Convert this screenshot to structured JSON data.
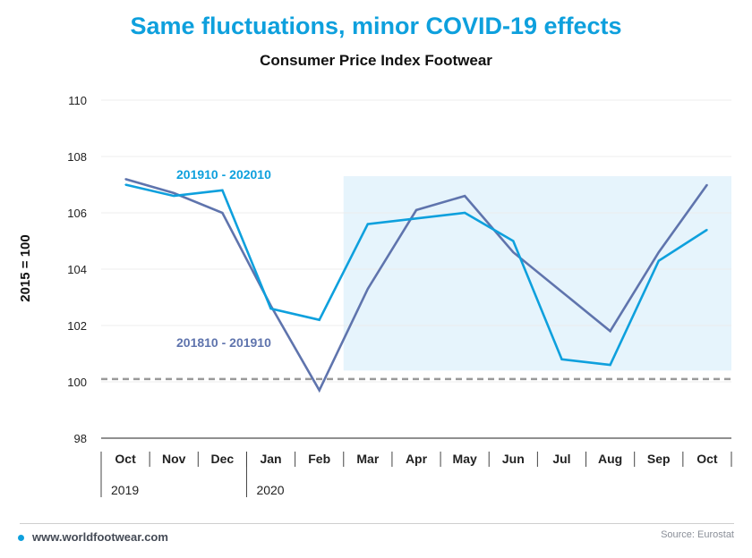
{
  "chart_data": {
    "type": "line",
    "title": "Same fluctuations, minor COVID-19 effects",
    "subtitle": "Consumer Price Index Footwear",
    "ylabel": "2015 = 100",
    "ylim": [
      98,
      110
    ],
    "yticks": [
      98,
      100,
      102,
      104,
      106,
      108,
      110
    ],
    "categories": [
      "Oct",
      "Nov",
      "Dec",
      "Jan",
      "Feb",
      "Mar",
      "Apr",
      "May",
      "Jun",
      "Jul",
      "Aug",
      "Sep",
      "Oct"
    ],
    "year_labels": [
      {
        "label": "2019",
        "start_index": 0
      },
      {
        "label": "2020",
        "start_index": 3
      }
    ],
    "reference_line": {
      "value": 100.1,
      "style": "dashed"
    },
    "highlight": {
      "from_category_index": 5,
      "to_category_index": 12,
      "y_range": [
        100.4,
        107.3
      ]
    },
    "grid": true,
    "series": [
      {
        "name": "201910 - 202010",
        "color": "#0ea0dd",
        "values": [
          107.0,
          106.6,
          106.8,
          102.6,
          102.2,
          105.6,
          105.8,
          106.0,
          105.0,
          100.8,
          100.6,
          104.3,
          105.4
        ]
      },
      {
        "name": "201810 - 201910",
        "color": "#5f74ad",
        "values": [
          107.2,
          106.7,
          106.0,
          102.7,
          99.7,
          103.3,
          106.1,
          106.6,
          104.6,
          103.2,
          101.8,
          104.6,
          107.0
        ]
      }
    ]
  },
  "footer": {
    "url": "www.worldfootwear.com",
    "source": "Source: Eurostat"
  },
  "colors": {
    "accent": "#0ea0dd",
    "series2": "#5f74ad",
    "highlight_fill": "#e6f4fc",
    "grid": "#ececec",
    "reference": "#999999"
  }
}
